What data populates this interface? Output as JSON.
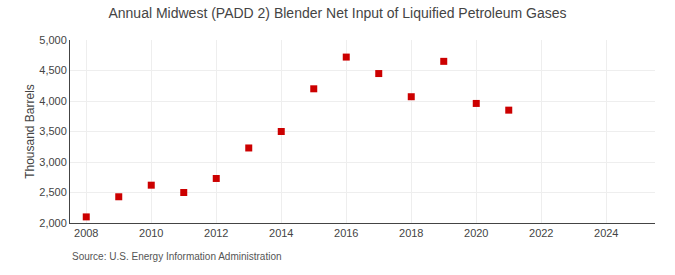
{
  "chart_data": {
    "type": "scatter",
    "title": "Annual Midwest (PADD 2) Blender Net Input of Liquified Petroleum Gases",
    "ylabel": "Thousand Barrels",
    "source": "Source: U.S. Energy Information Administration",
    "x": [
      2008,
      2009,
      2010,
      2011,
      2012,
      2013,
      2014,
      2015,
      2016,
      2017,
      2018,
      2019,
      2020,
      2021
    ],
    "values": [
      2100,
      2430,
      2620,
      2500,
      2730,
      3230,
      3500,
      4200,
      4720,
      4450,
      4070,
      4650,
      3960,
      3850
    ],
    "color": "#cc0000",
    "marker": "square",
    "xlim": [
      2007.5,
      2025.5
    ],
    "ylim": [
      2000,
      5000
    ],
    "xticks": [
      2008,
      2010,
      2012,
      2014,
      2016,
      2018,
      2020,
      2022,
      2024
    ],
    "yticks": [
      {
        "value": 2000,
        "label": "2,000"
      },
      {
        "value": 2500,
        "label": "2,500"
      },
      {
        "value": 3000,
        "label": "3,000"
      },
      {
        "value": 3500,
        "label": "3,500"
      },
      {
        "value": 4000,
        "label": "4,000"
      },
      {
        "value": 4500,
        "label": "4,500"
      },
      {
        "value": 5000,
        "label": "5,000"
      }
    ],
    "grid": true
  }
}
